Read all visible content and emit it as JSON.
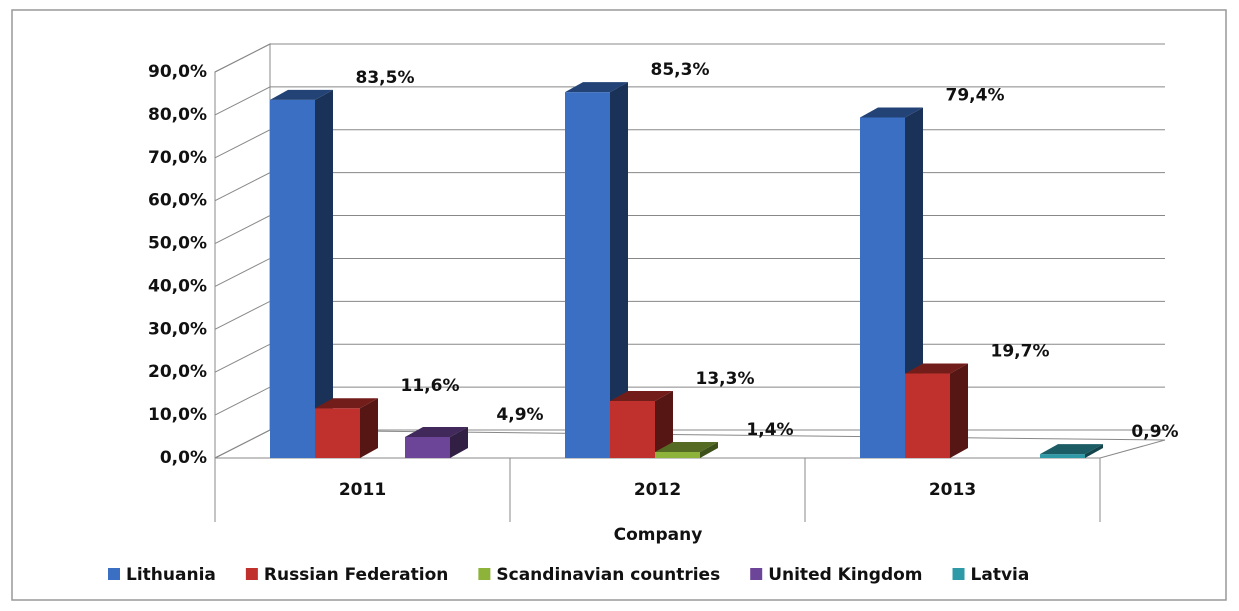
{
  "chart_data": {
    "type": "bar3d",
    "x_label": "Company",
    "categories": [
      "2011",
      "2012",
      "2013"
    ],
    "series": [
      {
        "name": "Lithuania",
        "color": "#3a6fc4",
        "values": [
          83.5,
          85.3,
          79.4
        ],
        "value_labels": [
          "83,5%",
          "85,3%",
          "79,4%"
        ]
      },
      {
        "name": "Russian Federation",
        "color": "#c0302c",
        "values": [
          11.6,
          13.3,
          19.7
        ],
        "value_labels": [
          "11,6%",
          "13,3%",
          "19,7%"
        ]
      },
      {
        "name": "Scandinavian countries",
        "color": "#8db33a",
        "values": [
          null,
          1.4,
          null
        ],
        "value_labels": [
          null,
          "1,4%",
          null
        ]
      },
      {
        "name": "United Kingdom",
        "color": "#6d4598",
        "values": [
          4.9,
          null,
          null
        ],
        "value_labels": [
          "4,9%",
          null,
          null
        ]
      },
      {
        "name": "Latvia",
        "color": "#2e9aa8",
        "values": [
          null,
          null,
          0.9
        ],
        "value_labels": [
          null,
          null,
          "0,9%"
        ]
      }
    ],
    "ylim": [
      0,
      90
    ],
    "yticks": [
      {
        "value": 0,
        "label": "0,0%"
      },
      {
        "value": 10,
        "label": "10,0%"
      },
      {
        "value": 20,
        "label": "20,0%"
      },
      {
        "value": 30,
        "label": "30,0%"
      },
      {
        "value": 40,
        "label": "40,0%"
      },
      {
        "value": 50,
        "label": "50,0%"
      },
      {
        "value": 60,
        "label": "60,0%"
      },
      {
        "value": 70,
        "label": "70,0%"
      },
      {
        "value": 80,
        "label": "80,0%"
      },
      {
        "value": 90,
        "label": "90,0%"
      }
    ],
    "grid": true,
    "legend": "bottom"
  }
}
